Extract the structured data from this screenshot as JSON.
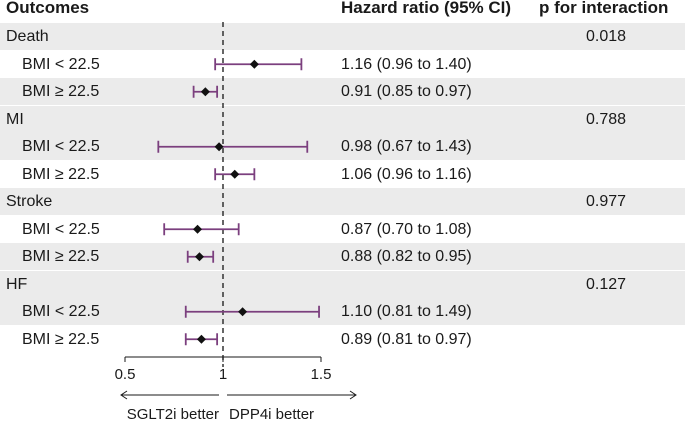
{
  "headers": {
    "outcomes": "Outcomes",
    "hazard_ratio": "Hazard ratio (95% CI)",
    "p_interaction": "p for interaction"
  },
  "colors": {
    "ci_line": "#7b3f7e",
    "point": "#111111",
    "band": "#ebebeb",
    "ref_line": "#333333"
  },
  "chart_data": {
    "type": "forest",
    "title": "",
    "xlabel": "",
    "xlim": [
      0.5,
      1.5
    ],
    "xticks": [
      {
        "value": 0.5,
        "label": "0.5"
      },
      {
        "value": 1.0,
        "label": "1"
      },
      {
        "value": 1.5,
        "label": "1.5"
      }
    ],
    "reference_line": 1.0,
    "direction_labels": {
      "left": "SGLT2i better",
      "right": "DPP4i better"
    },
    "outcomes": [
      {
        "name": "Death",
        "p_interaction": "0.018",
        "subgroups": [
          {
            "label": "BMI < 22.5",
            "hr": 1.16,
            "lo": 0.96,
            "hi": 1.4,
            "text": "1.16 (0.96 to 1.40)"
          },
          {
            "label": "BMI ≥ 22.5",
            "hr": 0.91,
            "lo": 0.85,
            "hi": 0.97,
            "text": "0.91 (0.85 to 0.97)"
          }
        ]
      },
      {
        "name": "MI",
        "p_interaction": "0.788",
        "subgroups": [
          {
            "label": "BMI < 22.5",
            "hr": 0.98,
            "lo": 0.67,
            "hi": 1.43,
            "text": "0.98 (0.67 to 1.43)"
          },
          {
            "label": "BMI ≥ 22.5",
            "hr": 1.06,
            "lo": 0.96,
            "hi": 1.16,
            "text": "1.06 (0.96 to 1.16)"
          }
        ]
      },
      {
        "name": "Stroke",
        "p_interaction": "0.977",
        "subgroups": [
          {
            "label": "BMI < 22.5",
            "hr": 0.87,
            "lo": 0.7,
            "hi": 1.08,
            "text": "0.87 (0.70 to 1.08)"
          },
          {
            "label": "BMI ≥ 22.5",
            "hr": 0.88,
            "lo": 0.82,
            "hi": 0.95,
            "text": "0.88 (0.82 to 0.95)"
          }
        ]
      },
      {
        "name": "HF",
        "p_interaction": "0.127",
        "subgroups": [
          {
            "label": "BMI < 22.5",
            "hr": 1.1,
            "lo": 0.81,
            "hi": 1.49,
            "text": "1.10 (0.81 to 1.49)"
          },
          {
            "label": "BMI ≥ 22.5",
            "hr": 0.89,
            "lo": 0.81,
            "hi": 0.97,
            "text": "0.89 (0.81 to 0.97)"
          }
        ]
      }
    ]
  }
}
